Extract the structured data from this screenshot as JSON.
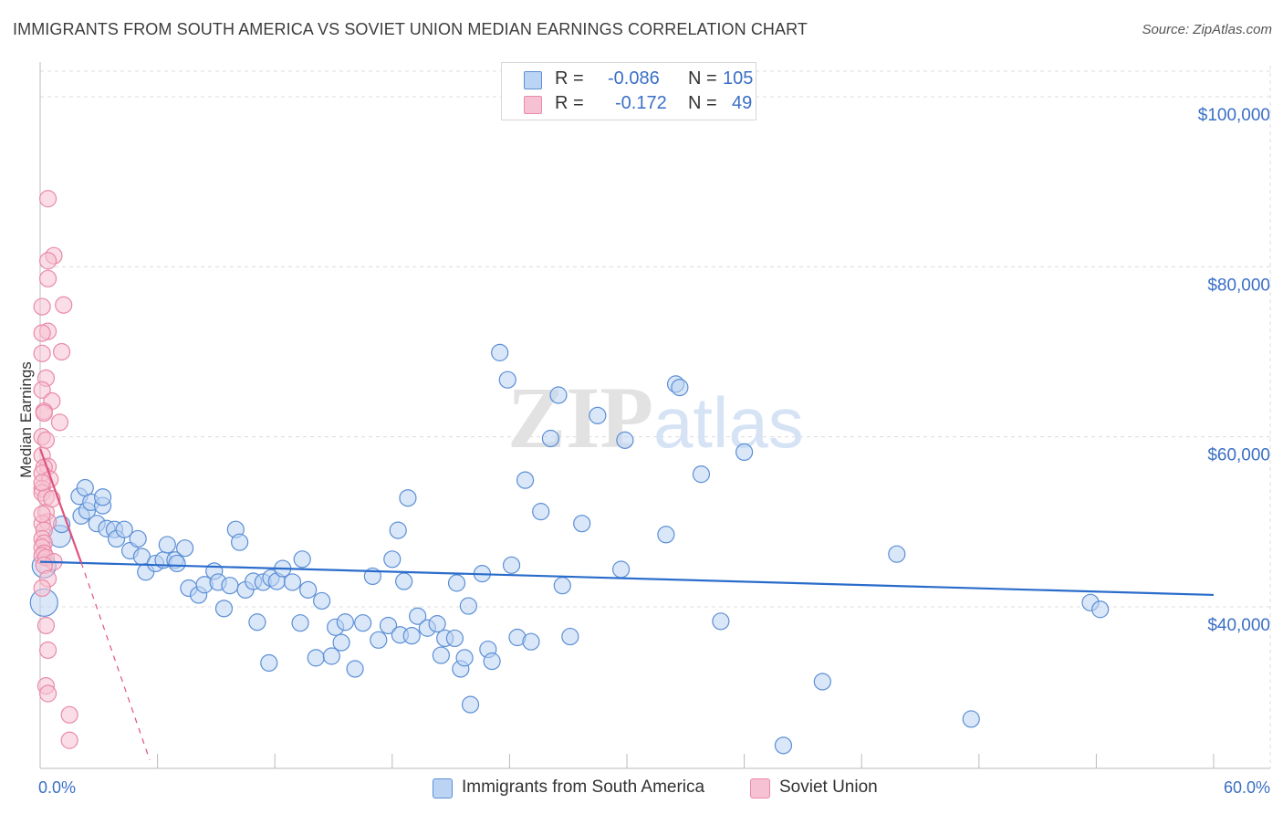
{
  "title": "IMMIGRANTS FROM SOUTH AMERICA VS SOVIET UNION MEDIAN EARNINGS CORRELATION CHART",
  "source": "Source: ZipAtlas.com",
  "colors": {
    "blue": "#5b8fd6",
    "blue_fill": "#bcd4f3",
    "blue_line": "#2a6ccb",
    "pink": "#e98aa8",
    "pink_fill": "#f6c1d2",
    "pink_line": "#e0527e",
    "accent_text": "#3a6fc6"
  },
  "legend": {
    "rows": [
      {
        "r_label": "R =",
        "r_value": "-0.086",
        "n_label": "N =",
        "n_value": "105"
      },
      {
        "r_label": "R =",
        "r_value": "-0.172",
        "n_label": "N =",
        "n_value": "49"
      }
    ]
  },
  "bottom_legend": {
    "items": [
      "Immigrants from South America",
      "Soviet Union"
    ]
  },
  "chart_data": {
    "type": "scatter",
    "title": "IMMIGRANTS FROM SOUTH AMERICA VS SOVIET UNION MEDIAN EARNINGS CORRELATION CHART",
    "xlabel": "",
    "ylabel": "Median Earnings",
    "x_tick_labels": [
      "0.0%",
      "60.0%"
    ],
    "y_tick_labels": [
      "$40,000",
      "$60,000",
      "$80,000",
      "$100,000"
    ],
    "y_ticks": [
      40000,
      60000,
      80000,
      100000
    ],
    "xlim": [
      0,
      60
    ],
    "ylim": [
      21000,
      103000
    ],
    "grid": true,
    "legend_position": "top-center",
    "watermark": "ZIPatlas",
    "series": [
      {
        "name": "Immigrants from South America",
        "r": -0.086,
        "n": 105,
        "trend": {
          "x": [
            0,
            60
          ],
          "y": [
            45300,
            41400
          ]
        },
        "points": [
          [
            0.2,
            44800
          ],
          [
            0.2,
            40500
          ],
          [
            1.0,
            48300
          ],
          [
            1.1,
            49700
          ],
          [
            2.1,
            50700
          ],
          [
            2.4,
            51300
          ],
          [
            2.0,
            53000
          ],
          [
            2.3,
            54000
          ],
          [
            2.6,
            52300
          ],
          [
            2.9,
            49800
          ],
          [
            3.2,
            51900
          ],
          [
            3.2,
            52900
          ],
          [
            3.4,
            49200
          ],
          [
            3.8,
            49100
          ],
          [
            3.9,
            48000
          ],
          [
            4.3,
            49100
          ],
          [
            4.6,
            46600
          ],
          [
            5.0,
            48000
          ],
          [
            5.2,
            45900
          ],
          [
            5.4,
            44100
          ],
          [
            5.9,
            45100
          ],
          [
            6.3,
            45500
          ],
          [
            6.5,
            47300
          ],
          [
            6.9,
            45500
          ],
          [
            7.0,
            45100
          ],
          [
            7.4,
            46900
          ],
          [
            7.6,
            42200
          ],
          [
            8.1,
            41400
          ],
          [
            8.4,
            42600
          ],
          [
            8.9,
            44200
          ],
          [
            9.1,
            42900
          ],
          [
            9.4,
            39800
          ],
          [
            9.7,
            42500
          ],
          [
            10.0,
            49100
          ],
          [
            10.2,
            47600
          ],
          [
            10.5,
            42000
          ],
          [
            10.9,
            43000
          ],
          [
            11.1,
            38200
          ],
          [
            11.4,
            42900
          ],
          [
            11.7,
            33400
          ],
          [
            11.8,
            43400
          ],
          [
            12.1,
            43000
          ],
          [
            12.4,
            44500
          ],
          [
            12.9,
            42900
          ],
          [
            13.4,
            45600
          ],
          [
            13.7,
            42000
          ],
          [
            14.1,
            34000
          ],
          [
            14.4,
            40700
          ],
          [
            13.3,
            38100
          ],
          [
            14.9,
            34200
          ],
          [
            15.1,
            37600
          ],
          [
            15.4,
            35800
          ],
          [
            15.6,
            38200
          ],
          [
            16.1,
            32700
          ],
          [
            16.5,
            38100
          ],
          [
            17.0,
            43600
          ],
          [
            17.3,
            36100
          ],
          [
            17.8,
            37800
          ],
          [
            18.0,
            45600
          ],
          [
            18.3,
            49000
          ],
          [
            18.6,
            43000
          ],
          [
            18.8,
            52800
          ],
          [
            18.4,
            36700
          ],
          [
            19.0,
            36600
          ],
          [
            19.3,
            38900
          ],
          [
            19.8,
            37500
          ],
          [
            20.3,
            38000
          ],
          [
            20.5,
            34300
          ],
          [
            20.7,
            36300
          ],
          [
            21.2,
            36300
          ],
          [
            21.5,
            32700
          ],
          [
            21.7,
            34000
          ],
          [
            21.9,
            40100
          ],
          [
            22.0,
            28500
          ],
          [
            21.3,
            42800
          ],
          [
            22.6,
            43900
          ],
          [
            22.9,
            35000
          ],
          [
            23.1,
            33600
          ],
          [
            23.5,
            69900
          ],
          [
            23.9,
            66700
          ],
          [
            24.1,
            44900
          ],
          [
            24.4,
            36400
          ],
          [
            24.8,
            54900
          ],
          [
            25.1,
            35900
          ],
          [
            25.6,
            51200
          ],
          [
            26.1,
            59800
          ],
          [
            26.5,
            64900
          ],
          [
            26.7,
            42500
          ],
          [
            27.1,
            36500
          ],
          [
            27.7,
            49800
          ],
          [
            28.5,
            62500
          ],
          [
            29.7,
            44400
          ],
          [
            29.9,
            59600
          ],
          [
            32.0,
            48500
          ],
          [
            32.5,
            66200
          ],
          [
            32.7,
            65800
          ],
          [
            33.8,
            55600
          ],
          [
            34.8,
            38300
          ],
          [
            36.0,
            58200
          ],
          [
            38.0,
            23700
          ],
          [
            40.0,
            31200
          ],
          [
            43.8,
            46200
          ],
          [
            47.6,
            26800
          ],
          [
            53.7,
            40500
          ],
          [
            54.2,
            39700
          ]
        ]
      },
      {
        "name": "Soviet Union",
        "r": -0.172,
        "n": 49,
        "trend": {
          "x": [
            0,
            2.1
          ],
          "y": [
            58600,
            45200
          ]
        },
        "trend_extended": {
          "x": [
            2.1,
            5.6
          ],
          "y": [
            45200,
            22000
          ]
        },
        "points": [
          [
            0.4,
            88000
          ],
          [
            0.7,
            81300
          ],
          [
            0.4,
            80700
          ],
          [
            0.4,
            78600
          ],
          [
            1.2,
            75500
          ],
          [
            0.1,
            75300
          ],
          [
            0.4,
            72400
          ],
          [
            0.1,
            72200
          ],
          [
            1.1,
            70000
          ],
          [
            0.1,
            69800
          ],
          [
            0.3,
            66900
          ],
          [
            0.1,
            65500
          ],
          [
            0.6,
            64200
          ],
          [
            0.2,
            63000
          ],
          [
            0.2,
            62800
          ],
          [
            1.0,
            61700
          ],
          [
            0.1,
            60000
          ],
          [
            0.3,
            59600
          ],
          [
            0.1,
            57800
          ],
          [
            0.4,
            56500
          ],
          [
            0.2,
            56400
          ],
          [
            0.1,
            55700
          ],
          [
            0.5,
            55000
          ],
          [
            0.1,
            53900
          ],
          [
            0.1,
            53400
          ],
          [
            0.3,
            52900
          ],
          [
            0.3,
            51100
          ],
          [
            0.4,
            50000
          ],
          [
            0.1,
            49800
          ],
          [
            0.2,
            49000
          ],
          [
            0.1,
            48000
          ],
          [
            0.2,
            47500
          ],
          [
            0.1,
            47000
          ],
          [
            0.2,
            46300
          ],
          [
            0.1,
            46000
          ],
          [
            0.3,
            45800
          ],
          [
            0.7,
            45300
          ],
          [
            0.2,
            44900
          ],
          [
            0.4,
            43300
          ],
          [
            0.1,
            42200
          ],
          [
            0.3,
            37800
          ],
          [
            0.4,
            34900
          ],
          [
            0.3,
            30700
          ],
          [
            0.4,
            29800
          ],
          [
            1.5,
            27300
          ],
          [
            1.5,
            24300
          ],
          [
            0.1,
            54600
          ],
          [
            0.6,
            52700
          ],
          [
            0.1,
            50900
          ]
        ]
      }
    ]
  }
}
